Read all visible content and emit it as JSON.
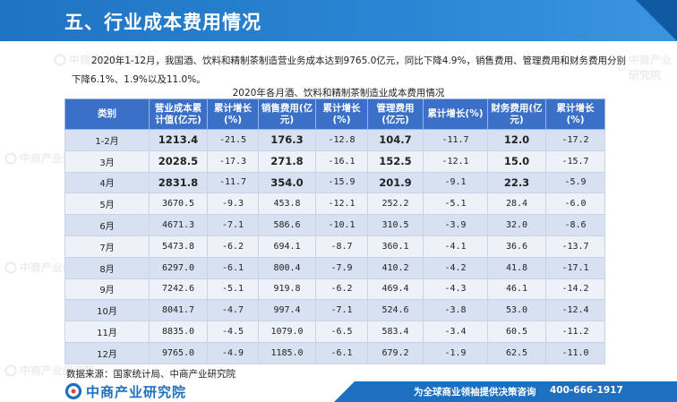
{
  "header": {
    "title": "五、行业成本费用情况"
  },
  "summary_text": "2020年1-12月，我国酒、饮料和精制茶制造营业务成本达到9765.0亿元，同比下降4.9%，销售费用、管理费用和财务费用分别下降6.1%、1.9%以及11.0%。",
  "table": {
    "caption": "2020年各月酒、饮料和精制茶制造业成本费用情况",
    "columns": [
      "类别",
      "营业成本累计值(亿元)",
      "累计增长(%)",
      "销售费用(亿元)",
      "累计增长(%)",
      "管理费用(亿元)",
      "累计增长(%)",
      "财务费用(亿元)",
      "累计增长(%)"
    ],
    "rows": [
      [
        "1-2月",
        "1213.4",
        "-21.5",
        "176.3",
        "-12.8",
        "104.7",
        "-11.7",
        "12.0",
        "-17.2"
      ],
      [
        "3月",
        "2028.5",
        "-17.3",
        "271.8",
        "-16.1",
        "152.5",
        "-12.1",
        "15.0",
        "-15.7"
      ],
      [
        "4月",
        "2831.8",
        "-11.7",
        "354.0",
        "-15.9",
        "201.9",
        "-9.1",
        "22.3",
        "-5.9"
      ],
      [
        "5月",
        "3670.5",
        "-9.3",
        "453.8",
        "-12.1",
        "252.2",
        "-5.1",
        "28.4",
        "-6.0"
      ],
      [
        "6月",
        "4671.3",
        "-7.1",
        "586.6",
        "-10.1",
        "310.5",
        "-3.9",
        "32.0",
        "-8.6"
      ],
      [
        "7月",
        "5473.8",
        "-6.2",
        "694.1",
        "-8.7",
        "360.1",
        "-4.1",
        "36.6",
        "-13.7"
      ],
      [
        "8月",
        "6297.0",
        "-6.1",
        "800.4",
        "-7.9",
        "410.2",
        "-4.2",
        "41.8",
        "-17.1"
      ],
      [
        "9月",
        "7242.6",
        "-5.1",
        "919.8",
        "-6.2",
        "469.4",
        "-4.3",
        "46.1",
        "-14.2"
      ],
      [
        "10月",
        "8041.7",
        "-4.7",
        "997.4",
        "-7.1",
        "524.6",
        "-3.8",
        "53.0",
        "-12.4"
      ],
      [
        "11月",
        "8835.0",
        "-4.5",
        "1079.0",
        "-6.5",
        "583.4",
        "-3.4",
        "60.5",
        "-11.2"
      ],
      [
        "12月",
        "9765.0",
        "-4.9",
        "1185.0",
        "-6.1",
        "679.2",
        "-1.9",
        "62.5",
        "-11.0"
      ]
    ]
  },
  "source": "数据来源：国家统计局、中商产业研究院",
  "footer": {
    "logo_text": "中商产业研究院",
    "slogan": "为全球商业领袖提供决策咨询",
    "phone": "400-666-1917"
  },
  "watermark_text": "中商产业研究院",
  "colors": {
    "title_bar": "#2a86d4",
    "header_row": "#3a70c8",
    "row_dark": "#d7e1f1",
    "row_light": "#edf1f8",
    "footer_band": "#1d6fc0"
  }
}
